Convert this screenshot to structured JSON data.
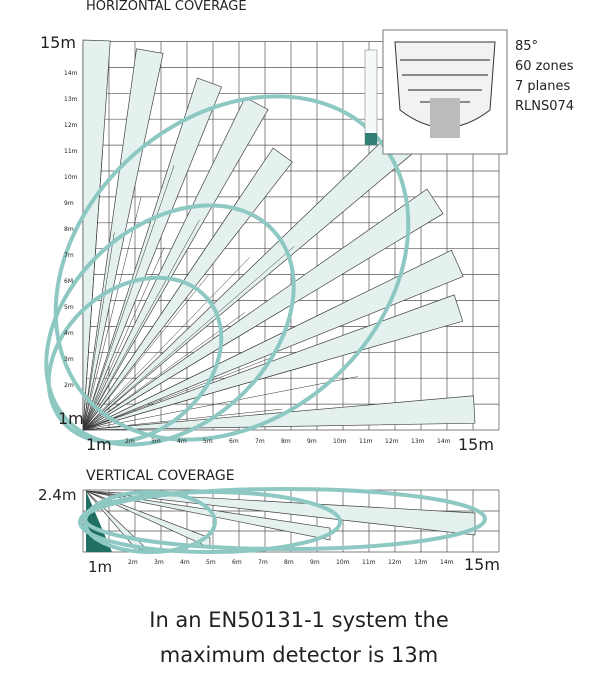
{
  "horizontal": {
    "title": "HORIZONTAL COVERAGE",
    "top_label": "15m",
    "y_labels": [
      "14m",
      "13m",
      "12m",
      "11m",
      "10m",
      "9m",
      "8m",
      "7m",
      "6M",
      "5m",
      "4m",
      "3m",
      "2m"
    ],
    "origin_label": "1m",
    "x_start": "1m",
    "x_labels": [
      "2m",
      "3m",
      "4m",
      "5m",
      "6m",
      "7m",
      "8m",
      "9m",
      "10m",
      "11m",
      "12m",
      "13m",
      "14m"
    ],
    "x_end": "15m"
  },
  "legend": {
    "lines": [
      "85°",
      "60 zones",
      "7 planes",
      "RLNS074"
    ]
  },
  "vertical": {
    "title": "VERTICAL COVERAGE",
    "top_label": "2.4m",
    "x_start": "1m",
    "x_labels": [
      "2m",
      "3m",
      "4m",
      "5m",
      "6m",
      "7m",
      "8m",
      "9m",
      "10m",
      "11m",
      "12m",
      "13m",
      "14m"
    ],
    "x_end": "15m"
  },
  "caption": {
    "lines": [
      "In an EN50131-1 system the",
      "maximum detector is 13m"
    ]
  }
}
